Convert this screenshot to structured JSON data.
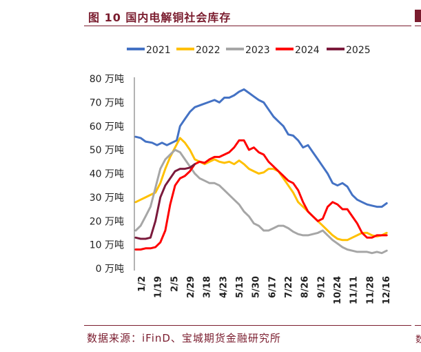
{
  "header": {
    "figure_title": "图 10 国内电解铜社会库存"
  },
  "footer": {
    "source": "数据来源：iFinD、宝城期货金融研究所"
  },
  "chart_data": {
    "type": "line",
    "title": "",
    "xlabel": "",
    "ylabel": "",
    "ylim": [
      0,
      80
    ],
    "yticks": [
      "0 万吨",
      "10 万吨",
      "20 万吨",
      "30 万吨",
      "40 万吨",
      "50 万吨",
      "60 万吨",
      "70 万吨",
      "80 万吨"
    ],
    "yunit": "万吨",
    "x_ticks": [
      "1/2",
      "1/19",
      "2/5",
      "2/29",
      "3/18",
      "4/23",
      "5/13",
      "5/30",
      "6/17",
      "7/22",
      "8/26",
      "9/12",
      "10/24",
      "11/11",
      "11/28",
      "12/16"
    ],
    "legend_position": "top",
    "grid": false,
    "series": [
      {
        "name": "2021",
        "color": "#4472c4",
        "points": [
          [
            0,
            55.5
          ],
          [
            0.3,
            55
          ],
          [
            0.6,
            53.5
          ],
          [
            1,
            53
          ],
          [
            1.3,
            52
          ],
          [
            1.6,
            53
          ],
          [
            1.9,
            52
          ],
          [
            2.2,
            53
          ],
          [
            2.5,
            54
          ],
          [
            2.7,
            60
          ],
          [
            3,
            63
          ],
          [
            3.3,
            66
          ],
          [
            3.6,
            68
          ],
          [
            4,
            69
          ],
          [
            4.4,
            70
          ],
          [
            4.8,
            71
          ],
          [
            5.1,
            70
          ],
          [
            5.4,
            72
          ],
          [
            5.7,
            72
          ],
          [
            6,
            73
          ],
          [
            6.3,
            74.5
          ],
          [
            6.6,
            75.5
          ],
          [
            6.9,
            74
          ],
          [
            7.2,
            72.5
          ],
          [
            7.5,
            71
          ],
          [
            7.8,
            70
          ],
          [
            8.1,
            67
          ],
          [
            8.4,
            64
          ],
          [
            8.7,
            62
          ],
          [
            9,
            60
          ],
          [
            9.3,
            56.5
          ],
          [
            9.6,
            56
          ],
          [
            9.9,
            54
          ],
          [
            10.2,
            51
          ],
          [
            10.5,
            52
          ],
          [
            10.8,
            49
          ],
          [
            11.1,
            46
          ],
          [
            11.4,
            43
          ],
          [
            11.7,
            40
          ],
          [
            12,
            36
          ],
          [
            12.3,
            35
          ],
          [
            12.6,
            36
          ],
          [
            12.9,
            34.5
          ],
          [
            13.2,
            31
          ],
          [
            13.5,
            29
          ],
          [
            13.8,
            28
          ],
          [
            14.1,
            27
          ],
          [
            14.4,
            26.5
          ],
          [
            14.7,
            26
          ],
          [
            15,
            26
          ],
          [
            15.3,
            27.5
          ]
        ]
      },
      {
        "name": "2022",
        "color": "#ffc000",
        "points": [
          [
            0,
            28
          ],
          [
            0.3,
            29
          ],
          [
            0.6,
            30
          ],
          [
            0.9,
            31
          ],
          [
            1.2,
            32
          ],
          [
            1.5,
            36
          ],
          [
            1.8,
            42
          ],
          [
            2.1,
            47
          ],
          [
            2.4,
            51
          ],
          [
            2.7,
            55
          ],
          [
            3,
            53
          ],
          [
            3.3,
            50
          ],
          [
            3.6,
            46
          ],
          [
            3.9,
            45
          ],
          [
            4.2,
            44
          ],
          [
            4.5,
            45
          ],
          [
            4.8,
            46
          ],
          [
            5.1,
            45
          ],
          [
            5.4,
            44.5
          ],
          [
            5.7,
            45
          ],
          [
            6,
            44
          ],
          [
            6.3,
            45.5
          ],
          [
            6.6,
            44
          ],
          [
            6.9,
            42
          ],
          [
            7.2,
            41
          ],
          [
            7.5,
            40
          ],
          [
            7.8,
            40.5
          ],
          [
            8.1,
            42
          ],
          [
            8.4,
            42
          ],
          [
            8.7,
            41
          ],
          [
            9,
            38
          ],
          [
            9.3,
            35
          ],
          [
            9.6,
            32
          ],
          [
            9.9,
            28
          ],
          [
            10.2,
            26
          ],
          [
            10.5,
            24
          ],
          [
            10.8,
            22
          ],
          [
            11.1,
            20
          ],
          [
            11.4,
            18
          ],
          [
            11.7,
            16
          ],
          [
            12,
            14
          ],
          [
            12.3,
            12.5
          ],
          [
            12.6,
            12
          ],
          [
            12.9,
            12
          ],
          [
            13.2,
            13
          ],
          [
            13.5,
            14
          ],
          [
            13.8,
            15
          ],
          [
            14.1,
            15
          ],
          [
            14.4,
            14
          ],
          [
            14.7,
            13.5
          ],
          [
            15,
            14
          ],
          [
            15.3,
            15
          ]
        ]
      },
      {
        "name": "2023",
        "color": "#a6a6a6",
        "points": [
          [
            0,
            16
          ],
          [
            0.3,
            18
          ],
          [
            0.6,
            22
          ],
          [
            0.9,
            26
          ],
          [
            1.2,
            34
          ],
          [
            1.5,
            42
          ],
          [
            1.8,
            46
          ],
          [
            2.1,
            48
          ],
          [
            2.4,
            50
          ],
          [
            2.7,
            49
          ],
          [
            3,
            46
          ],
          [
            3.3,
            43
          ],
          [
            3.6,
            40
          ],
          [
            3.9,
            38
          ],
          [
            4.2,
            37
          ],
          [
            4.5,
            36
          ],
          [
            4.8,
            36
          ],
          [
            5.1,
            35
          ],
          [
            5.4,
            33
          ],
          [
            5.7,
            31
          ],
          [
            6,
            29
          ],
          [
            6.3,
            27
          ],
          [
            6.6,
            24
          ],
          [
            6.9,
            22
          ],
          [
            7.2,
            19
          ],
          [
            7.5,
            18
          ],
          [
            7.8,
            16
          ],
          [
            8.1,
            16
          ],
          [
            8.4,
            17
          ],
          [
            8.7,
            18
          ],
          [
            9,
            18
          ],
          [
            9.3,
            17
          ],
          [
            9.6,
            15.5
          ],
          [
            9.9,
            14.5
          ],
          [
            10.2,
            14
          ],
          [
            10.5,
            14
          ],
          [
            10.8,
            14.5
          ],
          [
            11.1,
            15
          ],
          [
            11.4,
            16
          ],
          [
            11.7,
            14
          ],
          [
            12,
            12
          ],
          [
            12.3,
            10.5
          ],
          [
            12.6,
            9
          ],
          [
            12.9,
            8
          ],
          [
            13.2,
            7.5
          ],
          [
            13.5,
            7
          ],
          [
            13.8,
            7
          ],
          [
            14.1,
            7
          ],
          [
            14.4,
            6.5
          ],
          [
            14.7,
            7
          ],
          [
            15,
            6.5
          ],
          [
            15.3,
            7.5
          ]
        ]
      },
      {
        "name": "2024",
        "color": "#ff0000",
        "points": [
          [
            0,
            8
          ],
          [
            0.3,
            8
          ],
          [
            0.6,
            8.5
          ],
          [
            0.9,
            8.5
          ],
          [
            1.2,
            9
          ],
          [
            1.5,
            11
          ],
          [
            1.8,
            16
          ],
          [
            2.1,
            27
          ],
          [
            2.4,
            35
          ],
          [
            2.7,
            38
          ],
          [
            3,
            39
          ],
          [
            3.3,
            41
          ],
          [
            3.6,
            44
          ],
          [
            3.9,
            45
          ],
          [
            4.2,
            44.5
          ],
          [
            4.5,
            46
          ],
          [
            4.8,
            47
          ],
          [
            5.1,
            47
          ],
          [
            5.4,
            48
          ],
          [
            5.7,
            49
          ],
          [
            6,
            51
          ],
          [
            6.3,
            54
          ],
          [
            6.6,
            54
          ],
          [
            6.9,
            50
          ],
          [
            7.2,
            51
          ],
          [
            7.5,
            49
          ],
          [
            7.8,
            48
          ],
          [
            8.1,
            45
          ],
          [
            8.4,
            43
          ],
          [
            8.7,
            41
          ],
          [
            9,
            39
          ],
          [
            9.3,
            37
          ],
          [
            9.6,
            36
          ],
          [
            9.9,
            33
          ],
          [
            10.2,
            28
          ],
          [
            10.5,
            24
          ],
          [
            10.8,
            22
          ],
          [
            11.1,
            20
          ],
          [
            11.4,
            21
          ],
          [
            11.7,
            26
          ],
          [
            12,
            28
          ],
          [
            12.3,
            27
          ],
          [
            12.6,
            25
          ],
          [
            12.9,
            25
          ],
          [
            13.2,
            22
          ],
          [
            13.5,
            19
          ],
          [
            13.8,
            15
          ],
          [
            14.1,
            13
          ],
          [
            14.4,
            13
          ],
          [
            14.7,
            14
          ],
          [
            15,
            14
          ],
          [
            15.3,
            14
          ]
        ]
      },
      {
        "name": "2025",
        "color": "#7b1a3c",
        "points": [
          [
            0,
            13
          ],
          [
            0.3,
            12.5
          ],
          [
            0.6,
            12.5
          ],
          [
            0.9,
            13
          ],
          [
            1.2,
            20
          ],
          [
            1.5,
            30
          ],
          [
            1.8,
            35
          ],
          [
            2.1,
            38
          ],
          [
            2.4,
            41
          ],
          [
            2.7,
            42
          ],
          [
            3,
            42
          ],
          [
            3.3,
            42.5
          ],
          [
            3.6,
            44
          ]
        ]
      }
    ]
  }
}
